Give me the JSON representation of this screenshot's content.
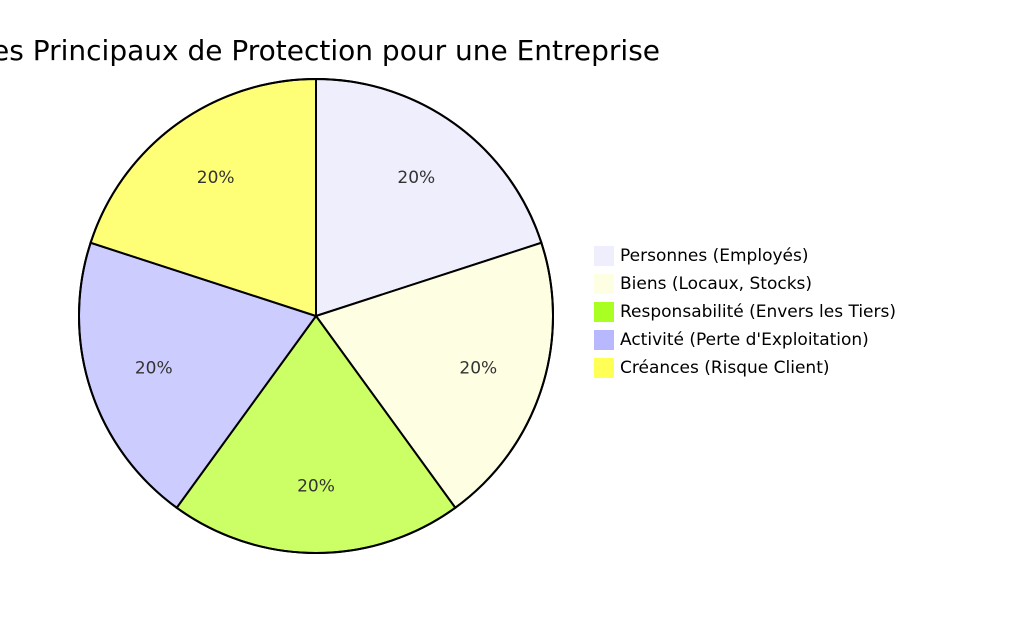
{
  "chart_data": {
    "type": "pie",
    "title": "es Principaux de Protection pour une Entreprise",
    "slices": [
      {
        "label": "Personnes (Employés)",
        "value": 20,
        "display": "20%",
        "color": "#eeeefc"
      },
      {
        "label": "Biens (Locaux, Stocks)",
        "value": 20,
        "display": "20%",
        "color": "#fefee2"
      },
      {
        "label": "Responsabilité (Envers les Tiers)",
        "value": 20,
        "display": "20%",
        "color": "#ccff66"
      },
      {
        "label": "Activité (Perte d'Exploitation)",
        "value": 20,
        "display": "20%",
        "color": "#ccccff"
      },
      {
        "label": "Créances (Risque Client)",
        "value": 20,
        "display": "20%",
        "color": "#ffff77"
      }
    ],
    "legend_colors": [
      "#eeeefc",
      "#fefee2",
      "#aaff22",
      "#b8b8ff",
      "#ffff55"
    ],
    "legend_position": "right"
  }
}
